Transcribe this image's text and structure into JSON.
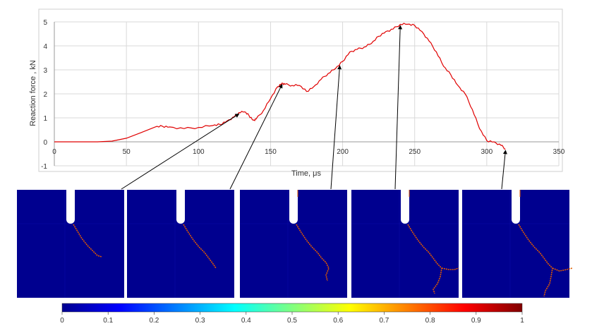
{
  "chart_data": {
    "type": "line",
    "xlabel": "Time, μs",
    "ylabel": "Reaction force , kN",
    "xlim": [
      0,
      350
    ],
    "ylim": [
      -1,
      5
    ],
    "x_ticks": [
      "0",
      "50",
      "100",
      "150",
      "200",
      "250",
      "300",
      "350"
    ],
    "y_ticks": [
      "-1",
      "0",
      "1",
      "2",
      "3",
      "4",
      "5"
    ],
    "grid": true,
    "series": [
      {
        "color": "#e00000",
        "x": [
          0,
          30,
          40,
          50,
          60,
          70,
          75,
          80,
          90,
          100,
          110,
          115,
          120,
          125,
          128,
          132,
          135,
          138,
          140,
          145,
          150,
          155,
          158,
          160,
          165,
          170,
          175,
          180,
          185,
          190,
          195,
          200,
          205,
          210,
          215,
          220,
          225,
          230,
          235,
          240,
          245,
          250,
          255,
          260,
          265,
          270,
          275,
          280,
          285,
          290,
          295,
          300,
          305,
          310,
          313
        ],
        "values": [
          0,
          0,
          0.03,
          0.15,
          0.38,
          0.62,
          0.65,
          0.62,
          0.55,
          0.6,
          0.68,
          0.72,
          0.88,
          1.05,
          1.22,
          1.25,
          1.1,
          0.9,
          0.95,
          1.3,
          1.8,
          2.3,
          2.45,
          2.4,
          2.35,
          2.35,
          2.1,
          2.3,
          2.6,
          2.85,
          3.05,
          3.35,
          3.75,
          3.85,
          3.95,
          4.1,
          4.4,
          4.6,
          4.7,
          4.9,
          4.9,
          4.85,
          4.6,
          4.2,
          3.75,
          3.15,
          2.8,
          2.35,
          2.0,
          1.35,
          0.55,
          0.05,
          0.0,
          -0.15,
          -0.3
        ]
      }
    ],
    "annotations_at_time": [
      128,
      158,
      198,
      240,
      313
    ],
    "colorbar": {
      "ticks": [
        "0",
        "0.1",
        "0.2",
        "0.3",
        "0.4",
        "0.5",
        "0.6",
        "0.7",
        "0.8",
        "0.9",
        "1"
      ],
      "colormap": "jet"
    }
  }
}
